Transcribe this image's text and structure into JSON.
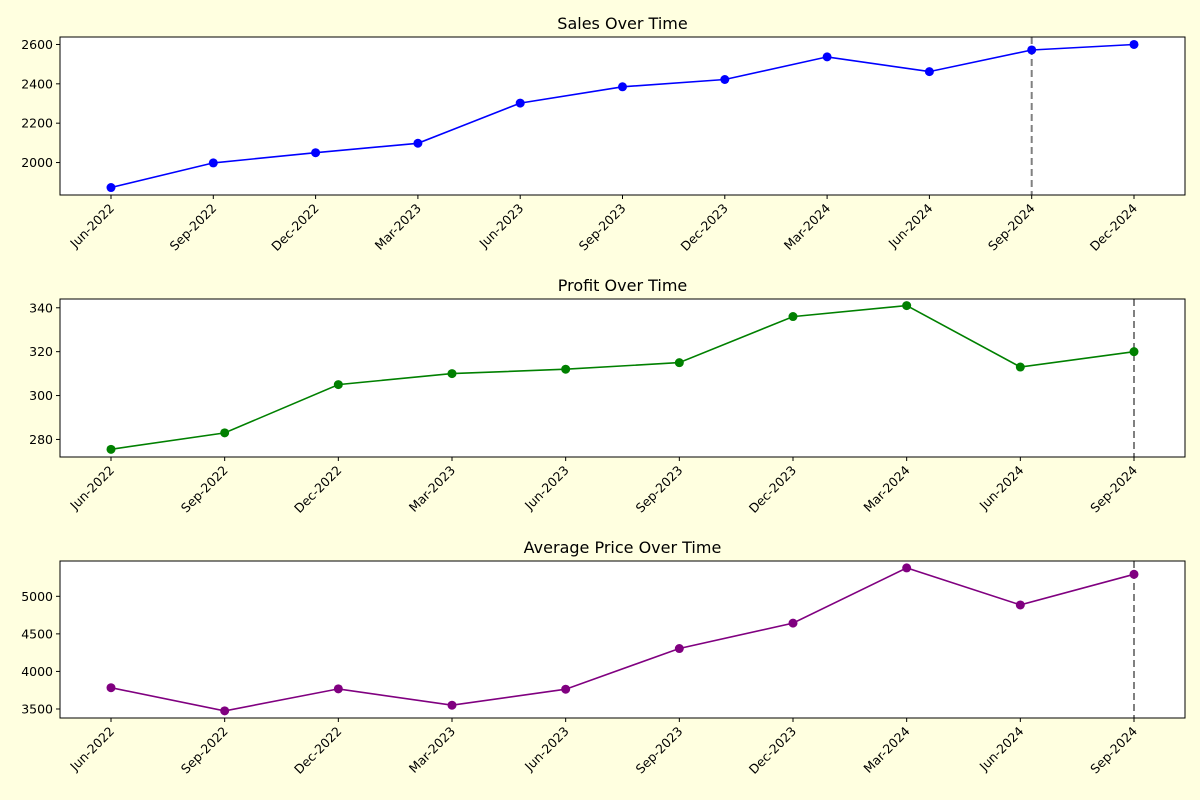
{
  "chart_data": [
    {
      "type": "line",
      "title": "Sales Over Time",
      "xlabel": "",
      "ylabel": "",
      "x": [
        "Jun-2022",
        "Sep-2022",
        "Dec-2022",
        "Mar-2023",
        "Jun-2023",
        "Sep-2023",
        "Dec-2023",
        "Mar-2024",
        "Jun-2024",
        "Sep-2024",
        "Dec-2024"
      ],
      "series": [
        {
          "values": [
            1873,
            1998,
            2050,
            2098,
            2302,
            2385,
            2422,
            2537,
            2462,
            2572,
            2600
          ],
          "color": "#0000ff"
        }
      ],
      "ylim": [
        1835,
        2638
      ],
      "yticks": [
        2000,
        2200,
        2400,
        2600
      ],
      "marker_line_at": "Sep-2024",
      "grid": false,
      "legend": "none"
    },
    {
      "type": "line",
      "title": "Profit Over Time",
      "xlabel": "",
      "ylabel": "",
      "x": [
        "Jun-2022",
        "Sep-2022",
        "Dec-2022",
        "Mar-2023",
        "Jun-2023",
        "Sep-2023",
        "Dec-2023",
        "Mar-2024",
        "Jun-2024",
        "Sep-2024"
      ],
      "series": [
        {
          "values": [
            275.5,
            283,
            305,
            310,
            312,
            315,
            336,
            341,
            313,
            320
          ],
          "color": "#008000"
        }
      ],
      "ylim": [
        272,
        344
      ],
      "yticks": [
        280,
        300,
        320,
        340
      ],
      "marker_line_at": "Sep-2024",
      "grid": false,
      "legend": "none"
    },
    {
      "type": "line",
      "title": "Average Price Over Time",
      "xlabel": "",
      "ylabel": "",
      "x": [
        "Jun-2022",
        "Sep-2022",
        "Dec-2022",
        "Mar-2023",
        "Jun-2023",
        "Sep-2023",
        "Dec-2023",
        "Mar-2024",
        "Jun-2024",
        "Sep-2024"
      ],
      "series": [
        {
          "values": [
            3783,
            3475,
            3768,
            3550,
            3763,
            4305,
            4643,
            5378,
            4885,
            5293
          ],
          "color": "#800080"
        }
      ],
      "ylim": [
        3380,
        5470
      ],
      "yticks": [
        3500,
        4000,
        4500,
        5000
      ],
      "marker_line_at": "Sep-2024",
      "grid": false,
      "legend": "none"
    }
  ],
  "colors": {
    "background": "#ffffe0",
    "axes_background": "#ffffff",
    "reference_line": "#808080"
  }
}
